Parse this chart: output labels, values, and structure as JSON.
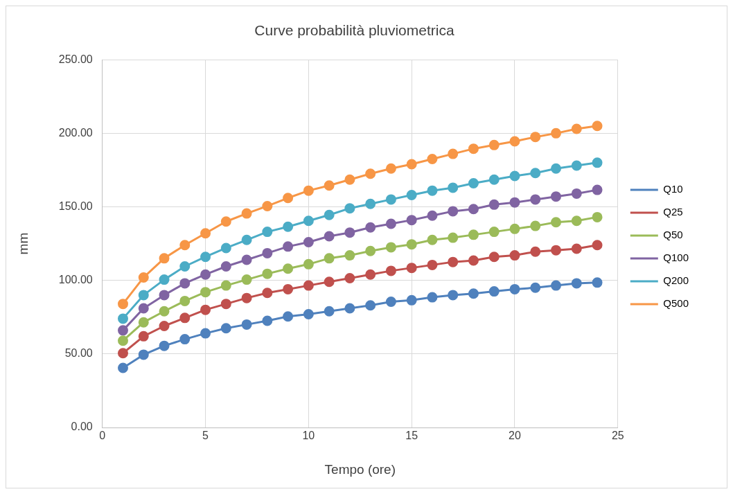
{
  "chart_data": {
    "type": "line",
    "title": "Curve probabilità pluviometrica",
    "xlabel": "Tempo (ore)",
    "ylabel": "mm",
    "x": [
      1,
      2,
      3,
      4,
      5,
      6,
      7,
      8,
      9,
      10,
      11,
      12,
      13,
      14,
      15,
      16,
      17,
      18,
      19,
      20,
      21,
      22,
      23,
      24
    ],
    "xlim": [
      0,
      25
    ],
    "xticks": [
      0,
      5,
      10,
      15,
      20,
      25
    ],
    "ylim": [
      0,
      250
    ],
    "yticks": [
      {
        "value": 0,
        "label": "0.00"
      },
      {
        "value": 50,
        "label": "50.00"
      },
      {
        "value": 100,
        "label": "100.00"
      },
      {
        "value": 150,
        "label": "150.00"
      },
      {
        "value": 200,
        "label": "200.00"
      },
      {
        "value": 250,
        "label": "250.00"
      }
    ],
    "grid": true,
    "legend": "right",
    "marker": "circle",
    "line_style": "solid",
    "series": [
      {
        "name": "Q10",
        "color": "#4f81bd",
        "values": [
          40.5,
          49.5,
          55.5,
          60,
          64,
          67.5,
          70,
          72.5,
          75.5,
          77,
          79,
          81,
          83,
          85.5,
          86.5,
          88.5,
          90,
          91,
          92.5,
          94,
          95,
          96.5,
          98,
          98.5
        ]
      },
      {
        "name": "Q25",
        "color": "#c0504d",
        "values": [
          50.5,
          62,
          69,
          74.5,
          80,
          84,
          88,
          91.5,
          94,
          96.5,
          99,
          101.5,
          104,
          106.5,
          108.5,
          110.5,
          112.5,
          113.5,
          116,
          117,
          119.5,
          120.5,
          121.5,
          124
        ]
      },
      {
        "name": "Q50",
        "color": "#9bbb59",
        "values": [
          59,
          71.5,
          79,
          86,
          92,
          96.5,
          100.5,
          104.5,
          108,
          111,
          115,
          117,
          120,
          122.5,
          124.5,
          127.5,
          129,
          131,
          133,
          135,
          137,
          139.5,
          140.5,
          143
        ]
      },
      {
        "name": "Q100",
        "color": "#8064a2",
        "values": [
          66,
          81,
          90,
          98,
          104,
          109.5,
          114,
          118.5,
          123,
          126,
          130,
          132.5,
          136,
          138.5,
          141,
          144,
          147,
          148.5,
          151.5,
          153,
          155,
          157,
          159,
          161.5
        ]
      },
      {
        "name": "Q200",
        "color": "#4bacc6",
        "values": [
          74,
          90,
          100.5,
          109.5,
          116,
          122,
          127.5,
          133,
          136.5,
          140.5,
          144.5,
          149,
          152,
          155,
          158,
          161,
          163,
          166,
          168.5,
          171,
          173,
          176,
          178,
          180
        ]
      },
      {
        "name": "Q500",
        "color": "#f79646",
        "values": [
          84,
          102,
          115,
          124,
          132,
          140,
          145.5,
          150.5,
          156,
          161,
          164.5,
          168.5,
          172.5,
          176,
          179,
          182.5,
          186,
          189.5,
          192,
          194.5,
          197.5,
          200,
          203,
          205
        ]
      }
    ]
  }
}
